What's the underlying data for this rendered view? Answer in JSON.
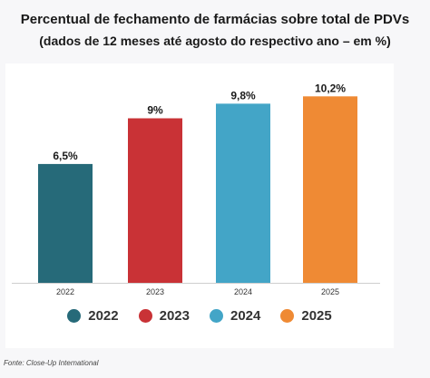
{
  "header": {
    "title": "Percentual de fechamento de farmácias sobre total de PDVs",
    "subtitle": "(dados de 12 meses até agosto do respectivo ano – em %)"
  },
  "chart_data": {
    "type": "bar",
    "categories": [
      "2022",
      "2023",
      "2024",
      "2025"
    ],
    "values": [
      6.5,
      9,
      9.8,
      10.2
    ],
    "data_labels": [
      "6,5%",
      "9%",
      "9,8%",
      "10,2%"
    ],
    "colors": [
      "#266a79",
      "#c93236",
      "#43a5c7",
      "#ef8a34"
    ],
    "ylim": [
      0,
      12
    ],
    "grid": false,
    "legend": {
      "position": "bottom",
      "entries": [
        "2022",
        "2023",
        "2024",
        "2025"
      ]
    }
  },
  "footer": {
    "source": "Fonte: Close-Up International"
  }
}
